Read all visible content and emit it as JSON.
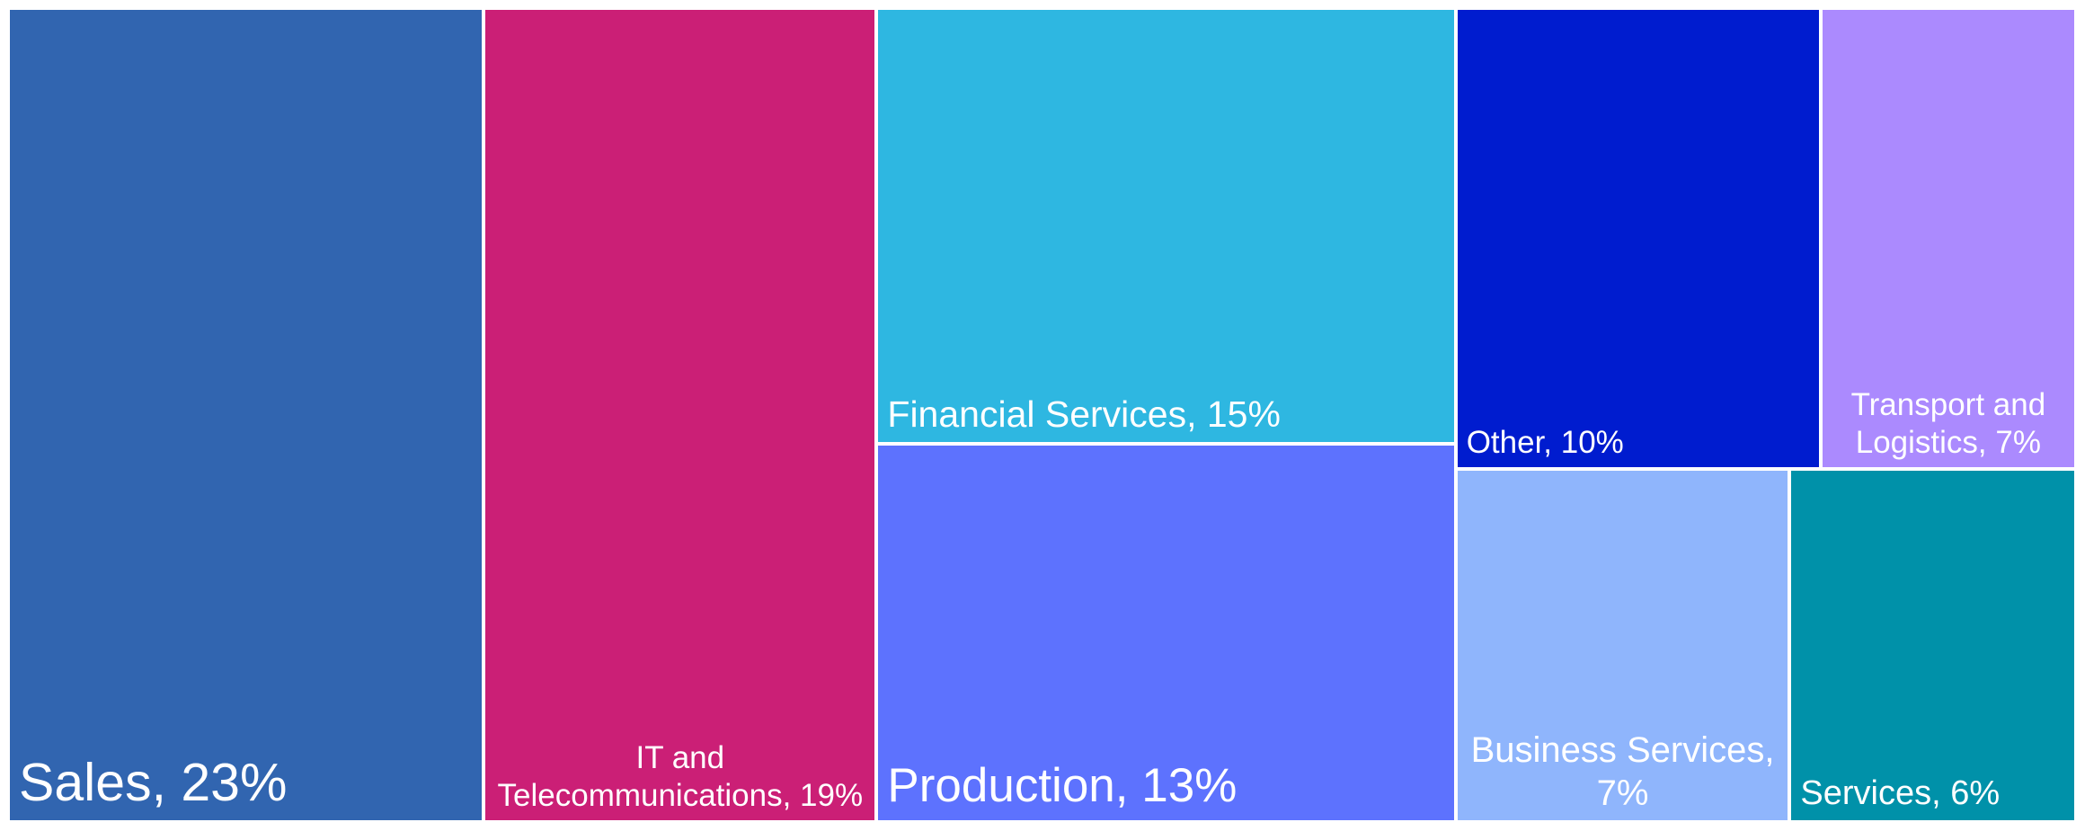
{
  "chart_data": {
    "type": "treemap",
    "labels": [
      "Sales, 23%",
      "IT and Telecommunications, 19%",
      "Financial Services, 15%",
      "Production, 13%",
      "Other, 10%",
      "Transport and Logistics, 7%",
      "Business Services, 7%",
      "Services, 6%"
    ],
    "values": [
      23,
      19,
      15,
      13,
      10,
      7,
      7,
      6
    ],
    "colors": [
      "#3165b0",
      "#cb1f76",
      "#2eb7e1",
      "#5d72fe",
      "#001ccf",
      "#ab8afe",
      "#8fb5fc",
      "#0091a9"
    ]
  }
}
